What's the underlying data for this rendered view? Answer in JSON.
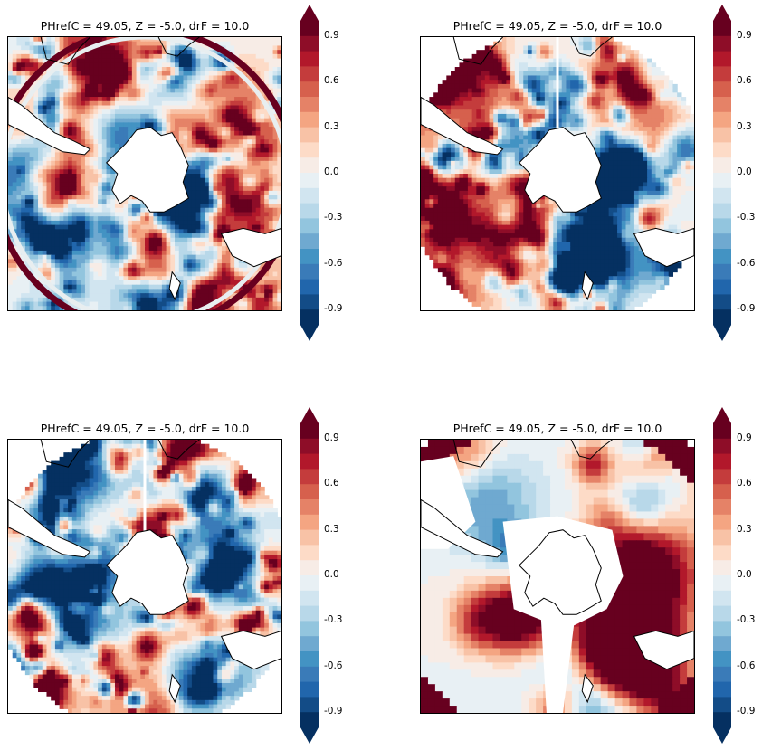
{
  "figure": {
    "colormap": "RdBu_r",
    "colors": {
      "neg_extreme": "#053061",
      "neg": "#2166ac",
      "neg_mid": "#92c5de",
      "neutral": "#f7f7f7",
      "pos_mid": "#f4a582",
      "pos": "#b2182b",
      "pos_extreme": "#67001f",
      "land": "#ffffff",
      "coast": "#000000"
    }
  },
  "chart_data": [
    {
      "type": "heatmap",
      "title": "PHrefC = 49.05, Z = -5.0, drF = 10.0",
      "projection": "south-polar-stereographic",
      "colorbar": {
        "vmin": -1.0,
        "vmax": 1.0,
        "levels": 20,
        "extend": "both",
        "tick_labels": [
          "0.9",
          "0.6",
          "0.3",
          "0.0",
          "-0.3",
          "-0.6",
          "-0.9"
        ]
      },
      "features": [
        "ring-artifact-at-domain-edge",
        "high-variance-small-scale-structure"
      ]
    },
    {
      "type": "heatmap",
      "title": "PHrefC = 49.05, Z = -5.0, drF = 10.0",
      "projection": "south-polar-stereographic",
      "colorbar": {
        "vmin": -1.0,
        "vmax": 1.0,
        "levels": 20,
        "extend": "both",
        "tick_labels": [
          "0.9",
          "0.6",
          "0.3",
          "0.0",
          "-0.3",
          "-0.6",
          "-0.9"
        ]
      },
      "features": [
        "circular-domain",
        "vertical-seam-at-0-meridian"
      ]
    },
    {
      "type": "heatmap",
      "title": "PHrefC = 49.05, Z = -5.0, drF = 10.0",
      "projection": "south-polar-stereographic",
      "colorbar": {
        "vmin": -1.0,
        "vmax": 1.0,
        "levels": 20,
        "extend": "both",
        "tick_labels": [
          "0.9",
          "0.6",
          "0.3",
          "0.0",
          "-0.3",
          "-0.6",
          "-0.9"
        ]
      },
      "features": [
        "circular-domain",
        "vertical-seam-at-0-meridian"
      ]
    },
    {
      "type": "heatmap",
      "title": "PHrefC = 49.05, Z = -5.0, drF = 10.0",
      "projection": "south-polar-stereographic",
      "colorbar": {
        "vmin": -1.0,
        "vmax": 1.0,
        "levels": 20,
        "extend": "both",
        "tick_labels": [
          "0.9",
          "0.6",
          "0.3",
          "0.0",
          "-0.3",
          "-0.6",
          "-0.9"
        ]
      },
      "features": [
        "smooth-large-scale-field",
        "red-ring-at-outer-edge",
        "masked-white-areas-near-antarctica"
      ]
    }
  ]
}
